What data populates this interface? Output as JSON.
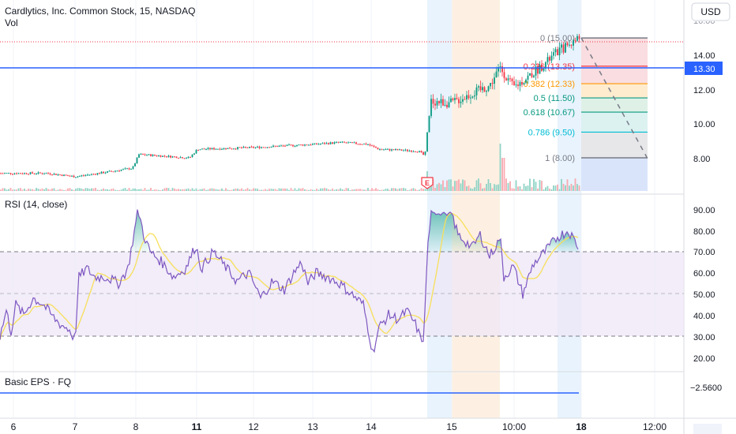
{
  "header": {
    "symbol_line": "Cardlytics, Inc. Common Stock, 15, NASDAQ",
    "vol_label": "Vol",
    "currency": "USD"
  },
  "price_axis": {
    "ticks": [
      "14.00",
      "12.00",
      "10.00",
      "8.00"
    ],
    "top_partial": "16.00",
    "current_price": "13.30"
  },
  "fib": {
    "levels": [
      {
        "ratio": 0,
        "price": 15.0,
        "label": "0 (15.00)",
        "color": "#787b86",
        "fill": "#f8d7da"
      },
      {
        "ratio": 0.236,
        "price": 13.35,
        "label": "0.236 (13.35)",
        "color": "#f23645",
        "fill": "#f8d7da"
      },
      {
        "ratio": 0.382,
        "price": 12.33,
        "label": "0.382 (12.33)",
        "color": "#ff9800",
        "fill": "#ffe9c7"
      },
      {
        "ratio": 0.5,
        "price": 11.5,
        "label": "0.5 (11.50)",
        "color": "#089981",
        "fill": "#d9efe3"
      },
      {
        "ratio": 0.618,
        "price": 10.67,
        "label": "0.618 (10.67)",
        "color": "#089981",
        "fill": "#d5f0ef"
      },
      {
        "ratio": 0.786,
        "price": 9.5,
        "label": "0.786 (9.50)",
        "color": "#00bcd4",
        "fill": "#e3e3e5"
      },
      {
        "ratio": 1,
        "price": 8.0,
        "label": "1 (8.00)",
        "color": "#787b86",
        "fill": "#d5e1fb"
      }
    ]
  },
  "earnings_marker": "E",
  "rsi": {
    "title": "RSI (14, close)",
    "ticks": [
      "90.00",
      "80.00",
      "70.00",
      "60.00",
      "50.00",
      "40.00",
      "30.00",
      "20.00"
    ],
    "upper_band": 70,
    "lower_band": 30
  },
  "eps": {
    "title": "Basic EPS · FQ",
    "value_label": "−2.5600"
  },
  "time_axis": {
    "labels": [
      "6",
      "7",
      "8",
      "11",
      "12",
      "13",
      "14",
      "15",
      "10:00",
      "18",
      "12:00"
    ],
    "bold": [
      "11",
      "18"
    ]
  },
  "colors": {
    "up": "#089981",
    "down": "#f23645",
    "rsi_line": "#7e57c2",
    "rsi_ma": "#f7df5a",
    "price_line": "#2962ff",
    "eps_line": "#2962ff"
  },
  "chart_data": [
    {
      "type": "candlestick",
      "title": "Cardlytics, Inc. Common Stock, 15, NASDAQ",
      "x": [
        "6",
        "7",
        "8",
        "11",
        "12",
        "13",
        "14",
        "15",
        "10:00",
        "18"
      ],
      "series": [
        {
          "name": "",
          "values": [
            7.1,
            6.9,
            7.2,
            8.0,
            8.5,
            8.8,
            8.6,
            11.3,
            12.3,
            15.0
          ]
        }
      ],
      "ylim": [
        7.0,
        15.5
      ],
      "current_price": 13.3,
      "high": 15.0,
      "low": 6.9
    },
    {
      "type": "line",
      "title": "RSI (14, close)",
      "x": [
        "6",
        "7",
        "8",
        "11",
        "12",
        "13",
        "14",
        "15",
        "10:00",
        "18"
      ],
      "series": [
        {
          "name": "",
          "values": [
            30,
            45,
            90,
            60,
            65,
            55,
            42,
            88,
            65,
            72
          ]
        }
      ],
      "ylim": [
        15,
        95
      ],
      "bands": [
        30,
        70
      ]
    },
    {
      "type": "line",
      "title": "Basic EPS · FQ",
      "series": [
        {
          "name": "",
          "values": [
            -2.56
          ]
        }
      ]
    }
  ]
}
